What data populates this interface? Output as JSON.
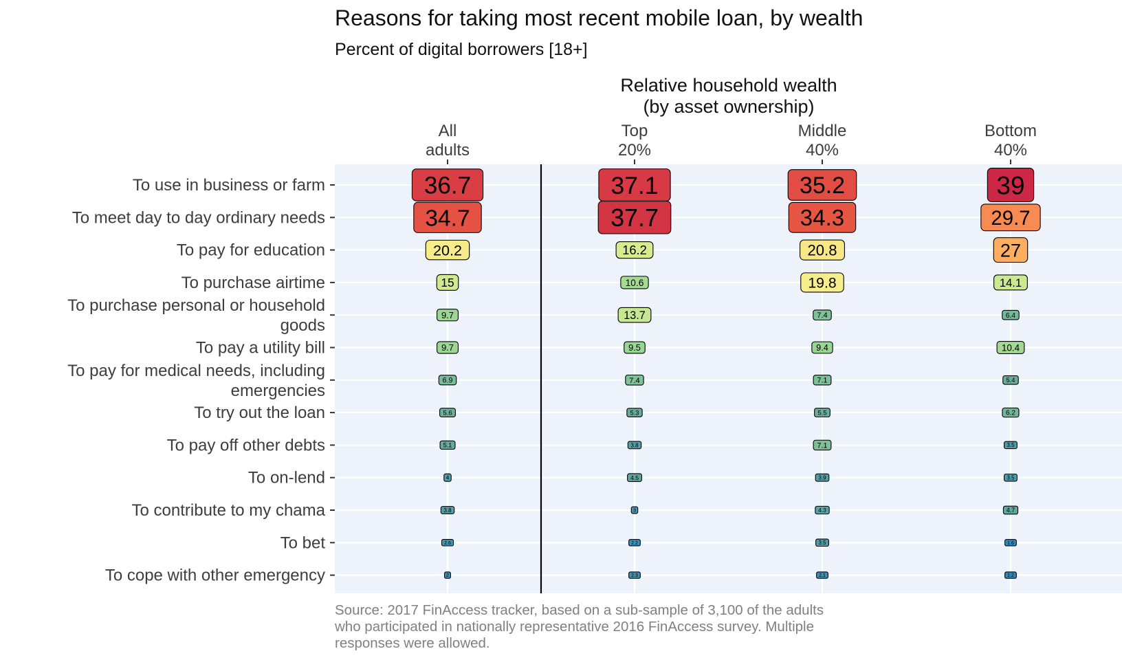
{
  "chart_data": {
    "type": "heatmap",
    "title": "Reasons for taking most recent mobile loan, by wealth",
    "subtitle": "Percent of digital borrowers [18+]",
    "column_axis_title": [
      "Relative household wealth",
      "(by asset ownership)"
    ],
    "columns": [
      {
        "label": [
          "All",
          "adults"
        ]
      },
      {
        "label": [
          "Top",
          "20%"
        ]
      },
      {
        "label": [
          "Middle",
          "40%"
        ]
      },
      {
        "label": [
          "Bottom",
          "40%"
        ]
      }
    ],
    "rows": [
      {
        "label": [
          "To use in business or farm"
        ],
        "values": [
          "36.7",
          "37.1",
          "35.2",
          "39"
        ]
      },
      {
        "label": [
          "To meet day to day ordinary needs"
        ],
        "values": [
          "34.7",
          "37.7",
          "34.3",
          "29.7"
        ]
      },
      {
        "label": [
          "To pay for education"
        ],
        "values": [
          "20.2",
          "16.2",
          "20.8",
          "27"
        ]
      },
      {
        "label": [
          "To purchase airtime"
        ],
        "values": [
          "15",
          "10.6",
          "19.8",
          "14.1"
        ]
      },
      {
        "label": [
          "To purchase personal or household",
          "goods"
        ],
        "values": [
          "9.7",
          "13.7",
          "7.4",
          "6.4"
        ]
      },
      {
        "label": [
          "To pay a utility bill"
        ],
        "values": [
          "9.7",
          "9.5",
          "9.4",
          "10.4"
        ]
      },
      {
        "label": [
          "To pay for medical needs, including",
          "emergencies"
        ],
        "values": [
          "6.9",
          "7.4",
          "7.1",
          "5.4"
        ]
      },
      {
        "label": [
          "To try out the loan"
        ],
        "values": [
          "5.6",
          "5.3",
          "5.5",
          "6.2"
        ]
      },
      {
        "label": [
          "To pay off other debts"
        ],
        "values": [
          "5.1",
          "3.8",
          "7.1",
          "3.5"
        ]
      },
      {
        "label": [
          "To on-lend"
        ],
        "values": [
          "4",
          "4.5",
          "3.9",
          "3.5"
        ]
      },
      {
        "label": [
          "To contribute to my chama"
        ],
        "values": [
          "3.8",
          "3",
          "4.3",
          "4.7"
        ]
      },
      {
        "label": [
          "To bet"
        ],
        "values": [
          "2.6",
          "2.2",
          "3.5",
          "1.6"
        ]
      },
      {
        "label": [
          "To cope with other emergency"
        ],
        "values": [
          "2",
          "2.3",
          "2.1",
          "1.2"
        ]
      }
    ],
    "color_scale": "Spectral reversed (blue = low, red = high)",
    "panel_background": "#EEF3FB",
    "separator_after_column": "All adults"
  },
  "source": [
    "Source: 2017 FinAccess tracker, based on a sub-sample of 3,100 of the adults",
    "who participated in nationally representative 2016 FinAccess survey. Multiple",
    "responses were allowed."
  ]
}
